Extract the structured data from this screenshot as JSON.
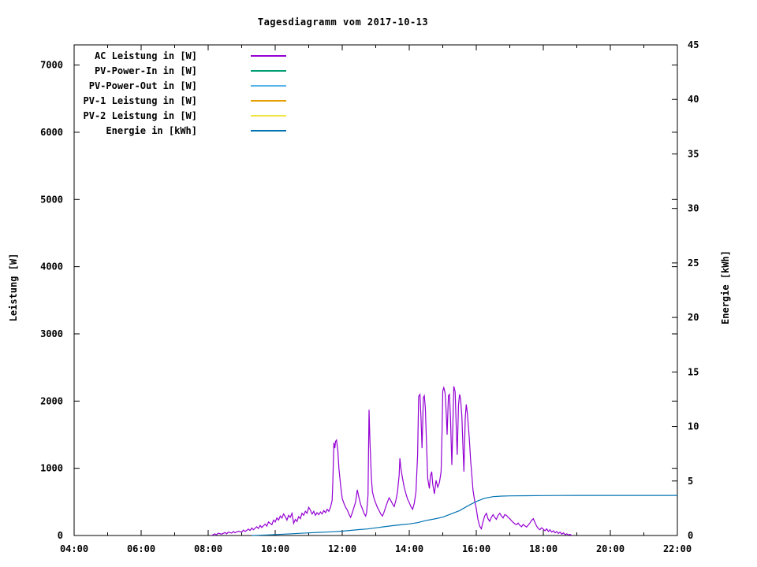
{
  "chart_data": {
    "type": "line",
    "title": "Tagesdiagramm vom 2017-10-13",
    "ylabel": "Leistung [W]",
    "y2label": "Energie [kWh]",
    "xlim": [
      4,
      22
    ],
    "ylim": [
      0,
      7300
    ],
    "y2lim": [
      0,
      45
    ],
    "grid": false,
    "legend_position": "top-left-inside",
    "background_color": "#ffffff",
    "axis_color": "#000000",
    "x_ticks": [
      {
        "v": 4,
        "label": "04:00"
      },
      {
        "v": 6,
        "label": "06:00"
      },
      {
        "v": 8,
        "label": "08:00"
      },
      {
        "v": 10,
        "label": "10:00"
      },
      {
        "v": 12,
        "label": "12:00"
      },
      {
        "v": 14,
        "label": "14:00"
      },
      {
        "v": 16,
        "label": "16:00"
      },
      {
        "v": 18,
        "label": "18:00"
      },
      {
        "v": 20,
        "label": "20:00"
      },
      {
        "v": 22,
        "label": "22:00"
      }
    ],
    "x_minor_ticks": [
      5,
      7,
      9,
      11,
      13,
      15,
      17,
      19,
      21
    ],
    "y_ticks": [
      {
        "v": 0,
        "label": "0"
      },
      {
        "v": 1000,
        "label": "1000"
      },
      {
        "v": 2000,
        "label": "2000"
      },
      {
        "v": 3000,
        "label": "3000"
      },
      {
        "v": 4000,
        "label": "4000"
      },
      {
        "v": 5000,
        "label": "5000"
      },
      {
        "v": 6000,
        "label": "6000"
      },
      {
        "v": 7000,
        "label": "7000"
      }
    ],
    "y2_ticks": [
      {
        "v": 0,
        "label": "0"
      },
      {
        "v": 5,
        "label": "5"
      },
      {
        "v": 10,
        "label": "10"
      },
      {
        "v": 15,
        "label": "15"
      },
      {
        "v": 20,
        "label": "20"
      },
      {
        "v": 25,
        "label": "25"
      },
      {
        "v": 30,
        "label": "30"
      },
      {
        "v": 35,
        "label": "35"
      },
      {
        "v": 40,
        "label": "40"
      },
      {
        "v": 45,
        "label": "45"
      }
    ],
    "series": [
      {
        "id": "ac_leistung",
        "label": "AC Leistung in [W]",
        "color": "#9400d3",
        "axis": "y",
        "points": [
          [
            8.1,
            0
          ],
          [
            8.2,
            25
          ],
          [
            8.25,
            10
          ],
          [
            8.3,
            35
          ],
          [
            8.4,
            20
          ],
          [
            8.5,
            45
          ],
          [
            8.55,
            25
          ],
          [
            8.6,
            50
          ],
          [
            8.7,
            35
          ],
          [
            8.75,
            60
          ],
          [
            8.8,
            40
          ],
          [
            8.9,
            65
          ],
          [
            9.0,
            50
          ],
          [
            9.05,
            80
          ],
          [
            9.1,
            60
          ],
          [
            9.2,
            95
          ],
          [
            9.25,
            75
          ],
          [
            9.3,
            110
          ],
          [
            9.35,
            85
          ],
          [
            9.45,
            130
          ],
          [
            9.5,
            105
          ],
          [
            9.55,
            150
          ],
          [
            9.6,
            120
          ],
          [
            9.7,
            170
          ],
          [
            9.75,
            140
          ],
          [
            9.8,
            200
          ],
          [
            9.9,
            160
          ],
          [
            9.95,
            230
          ],
          [
            10.0,
            200
          ],
          [
            10.05,
            260
          ],
          [
            10.1,
            230
          ],
          [
            10.15,
            290
          ],
          [
            10.2,
            260
          ],
          [
            10.25,
            320
          ],
          [
            10.3,
            280
          ],
          [
            10.35,
            230
          ],
          [
            10.4,
            300
          ],
          [
            10.45,
            270
          ],
          [
            10.5,
            330
          ],
          [
            10.55,
            180
          ],
          [
            10.6,
            240
          ],
          [
            10.65,
            210
          ],
          [
            10.7,
            280
          ],
          [
            10.75,
            250
          ],
          [
            10.8,
            330
          ],
          [
            10.85,
            300
          ],
          [
            10.9,
            360
          ],
          [
            10.95,
            330
          ],
          [
            11.0,
            420
          ],
          [
            11.05,
            380
          ],
          [
            11.1,
            320
          ],
          [
            11.15,
            360
          ],
          [
            11.2,
            300
          ],
          [
            11.25,
            340
          ],
          [
            11.3,
            310
          ],
          [
            11.35,
            350
          ],
          [
            11.4,
            320
          ],
          [
            11.45,
            370
          ],
          [
            11.5,
            340
          ],
          [
            11.55,
            390
          ],
          [
            11.6,
            360
          ],
          [
            11.65,
            420
          ],
          [
            11.7,
            520
          ],
          [
            11.72,
            800
          ],
          [
            11.75,
            1380
          ],
          [
            11.78,
            1300
          ],
          [
            11.8,
            1400
          ],
          [
            11.83,
            1420
          ],
          [
            11.87,
            1250
          ],
          [
            11.9,
            1000
          ],
          [
            11.95,
            750
          ],
          [
            12.0,
            550
          ],
          [
            12.05,
            480
          ],
          [
            12.1,
            420
          ],
          [
            12.15,
            380
          ],
          [
            12.2,
            320
          ],
          [
            12.25,
            270
          ],
          [
            12.3,
            340
          ],
          [
            12.35,
            420
          ],
          [
            12.4,
            500
          ],
          [
            12.45,
            680
          ],
          [
            12.5,
            560
          ],
          [
            12.55,
            460
          ],
          [
            12.6,
            400
          ],
          [
            12.65,
            330
          ],
          [
            12.7,
            290
          ],
          [
            12.73,
            350
          ],
          [
            12.77,
            600
          ],
          [
            12.8,
            1870
          ],
          [
            12.83,
            1350
          ],
          [
            12.87,
            850
          ],
          [
            12.9,
            650
          ],
          [
            12.95,
            550
          ],
          [
            13.0,
            480
          ],
          [
            13.05,
            420
          ],
          [
            13.1,
            370
          ],
          [
            13.15,
            320
          ],
          [
            13.2,
            290
          ],
          [
            13.25,
            350
          ],
          [
            13.3,
            430
          ],
          [
            13.35,
            500
          ],
          [
            13.4,
            560
          ],
          [
            13.45,
            520
          ],
          [
            13.5,
            470
          ],
          [
            13.55,
            430
          ],
          [
            13.6,
            520
          ],
          [
            13.65,
            650
          ],
          [
            13.7,
            900
          ],
          [
            13.72,
            1150
          ],
          [
            13.75,
            1000
          ],
          [
            13.8,
            850
          ],
          [
            13.85,
            720
          ],
          [
            13.9,
            620
          ],
          [
            13.95,
            540
          ],
          [
            14.0,
            490
          ],
          [
            14.05,
            430
          ],
          [
            14.1,
            390
          ],
          [
            14.15,
            480
          ],
          [
            14.2,
            650
          ],
          [
            14.25,
            1200
          ],
          [
            14.28,
            2070
          ],
          [
            14.32,
            2100
          ],
          [
            14.35,
            1750
          ],
          [
            14.38,
            1300
          ],
          [
            14.42,
            2050
          ],
          [
            14.45,
            2080
          ],
          [
            14.48,
            1900
          ],
          [
            14.52,
            1300
          ],
          [
            14.55,
            850
          ],
          [
            14.6,
            700
          ],
          [
            14.63,
            880
          ],
          [
            14.67,
            950
          ],
          [
            14.7,
            760
          ],
          [
            14.75,
            620
          ],
          [
            14.8,
            820
          ],
          [
            14.85,
            720
          ],
          [
            14.9,
            790
          ],
          [
            14.95,
            950
          ],
          [
            14.98,
            1600
          ],
          [
            15.0,
            2150
          ],
          [
            15.03,
            2200
          ],
          [
            15.07,
            2120
          ],
          [
            15.1,
            1850
          ],
          [
            15.13,
            1500
          ],
          [
            15.17,
            2080
          ],
          [
            15.2,
            2100
          ],
          [
            15.23,
            1750
          ],
          [
            15.27,
            1050
          ],
          [
            15.3,
            1650
          ],
          [
            15.33,
            2220
          ],
          [
            15.37,
            2140
          ],
          [
            15.4,
            1650
          ],
          [
            15.43,
            1200
          ],
          [
            15.47,
            1950
          ],
          [
            15.5,
            2100
          ],
          [
            15.53,
            2040
          ],
          [
            15.57,
            1780
          ],
          [
            15.6,
            1350
          ],
          [
            15.63,
            950
          ],
          [
            15.67,
            1750
          ],
          [
            15.7,
            1950
          ],
          [
            15.73,
            1840
          ],
          [
            15.77,
            1600
          ],
          [
            15.8,
            1380
          ],
          [
            15.83,
            1120
          ],
          [
            15.87,
            880
          ],
          [
            15.9,
            680
          ],
          [
            15.95,
            520
          ],
          [
            16.0,
            400
          ],
          [
            16.05,
            240
          ],
          [
            16.1,
            140
          ],
          [
            16.15,
            100
          ],
          [
            16.2,
            200
          ],
          [
            16.25,
            290
          ],
          [
            16.3,
            330
          ],
          [
            16.35,
            250
          ],
          [
            16.4,
            210
          ],
          [
            16.45,
            270
          ],
          [
            16.5,
            310
          ],
          [
            16.55,
            270
          ],
          [
            16.6,
            240
          ],
          [
            16.65,
            300
          ],
          [
            16.7,
            330
          ],
          [
            16.75,
            290
          ],
          [
            16.8,
            260
          ],
          [
            16.85,
            310
          ],
          [
            16.9,
            300
          ],
          [
            16.95,
            270
          ],
          [
            17.0,
            250
          ],
          [
            17.05,
            220
          ],
          [
            17.1,
            195
          ],
          [
            17.15,
            175
          ],
          [
            17.2,
            160
          ],
          [
            17.25,
            185
          ],
          [
            17.3,
            150
          ],
          [
            17.35,
            130
          ],
          [
            17.4,
            165
          ],
          [
            17.45,
            145
          ],
          [
            17.5,
            125
          ],
          [
            17.55,
            155
          ],
          [
            17.6,
            185
          ],
          [
            17.65,
            225
          ],
          [
            17.7,
            250
          ],
          [
            17.75,
            195
          ],
          [
            17.8,
            140
          ],
          [
            17.85,
            105
          ],
          [
            17.9,
            85
          ],
          [
            17.95,
            115
          ],
          [
            18.0,
            95
          ],
          [
            18.05,
            70
          ],
          [
            18.1,
            100
          ],
          [
            18.15,
            60
          ],
          [
            18.2,
            85
          ],
          [
            18.25,
            50
          ],
          [
            18.3,
            70
          ],
          [
            18.35,
            40
          ],
          [
            18.4,
            60
          ],
          [
            18.45,
            30
          ],
          [
            18.5,
            50
          ],
          [
            18.55,
            20
          ],
          [
            18.6,
            40
          ],
          [
            18.65,
            12
          ],
          [
            18.7,
            25
          ],
          [
            18.75,
            8
          ],
          [
            18.8,
            15
          ],
          [
            18.85,
            0
          ]
        ]
      },
      {
        "id": "pv_power_in",
        "label": "PV-Power-In in [W]",
        "color": "#009e73",
        "axis": "y",
        "points": []
      },
      {
        "id": "pv_power_out",
        "label": "PV-Power-Out in [W]",
        "color": "#56b4e9",
        "axis": "y",
        "points": []
      },
      {
        "id": "pv1_leistung",
        "label": "PV-1 Leistung in [W]",
        "color": "#e69f00",
        "axis": "y",
        "points": []
      },
      {
        "id": "pv2_leistung",
        "label": "PV-2 Leistung in [W]",
        "color": "#f0e442",
        "axis": "y",
        "points": []
      },
      {
        "id": "energie",
        "label": "Energie in [kWh]",
        "color": "#0072b2",
        "axis": "y2",
        "points": [
          [
            9.3,
            0.0
          ],
          [
            9.5,
            0.02
          ],
          [
            9.75,
            0.05
          ],
          [
            10.0,
            0.08
          ],
          [
            10.25,
            0.12
          ],
          [
            10.5,
            0.16
          ],
          [
            10.75,
            0.2
          ],
          [
            11.0,
            0.24
          ],
          [
            11.25,
            0.28
          ],
          [
            11.5,
            0.31
          ],
          [
            11.75,
            0.35
          ],
          [
            12.0,
            0.4
          ],
          [
            12.25,
            0.47
          ],
          [
            12.5,
            0.54
          ],
          [
            12.75,
            0.6
          ],
          [
            13.0,
            0.7
          ],
          [
            13.25,
            0.8
          ],
          [
            13.5,
            0.9
          ],
          [
            13.75,
            0.98
          ],
          [
            14.0,
            1.06
          ],
          [
            14.25,
            1.18
          ],
          [
            14.5,
            1.38
          ],
          [
            14.75,
            1.52
          ],
          [
            15.0,
            1.68
          ],
          [
            15.25,
            1.98
          ],
          [
            15.5,
            2.28
          ],
          [
            15.75,
            2.72
          ],
          [
            16.0,
            3.12
          ],
          [
            16.25,
            3.42
          ],
          [
            16.5,
            3.56
          ],
          [
            16.75,
            3.61
          ],
          [
            17.0,
            3.63
          ],
          [
            17.5,
            3.65
          ],
          [
            18.0,
            3.66
          ],
          [
            18.5,
            3.67
          ],
          [
            19.0,
            3.68
          ],
          [
            20.0,
            3.68
          ],
          [
            21.0,
            3.68
          ],
          [
            22.0,
            3.68
          ]
        ]
      }
    ]
  }
}
